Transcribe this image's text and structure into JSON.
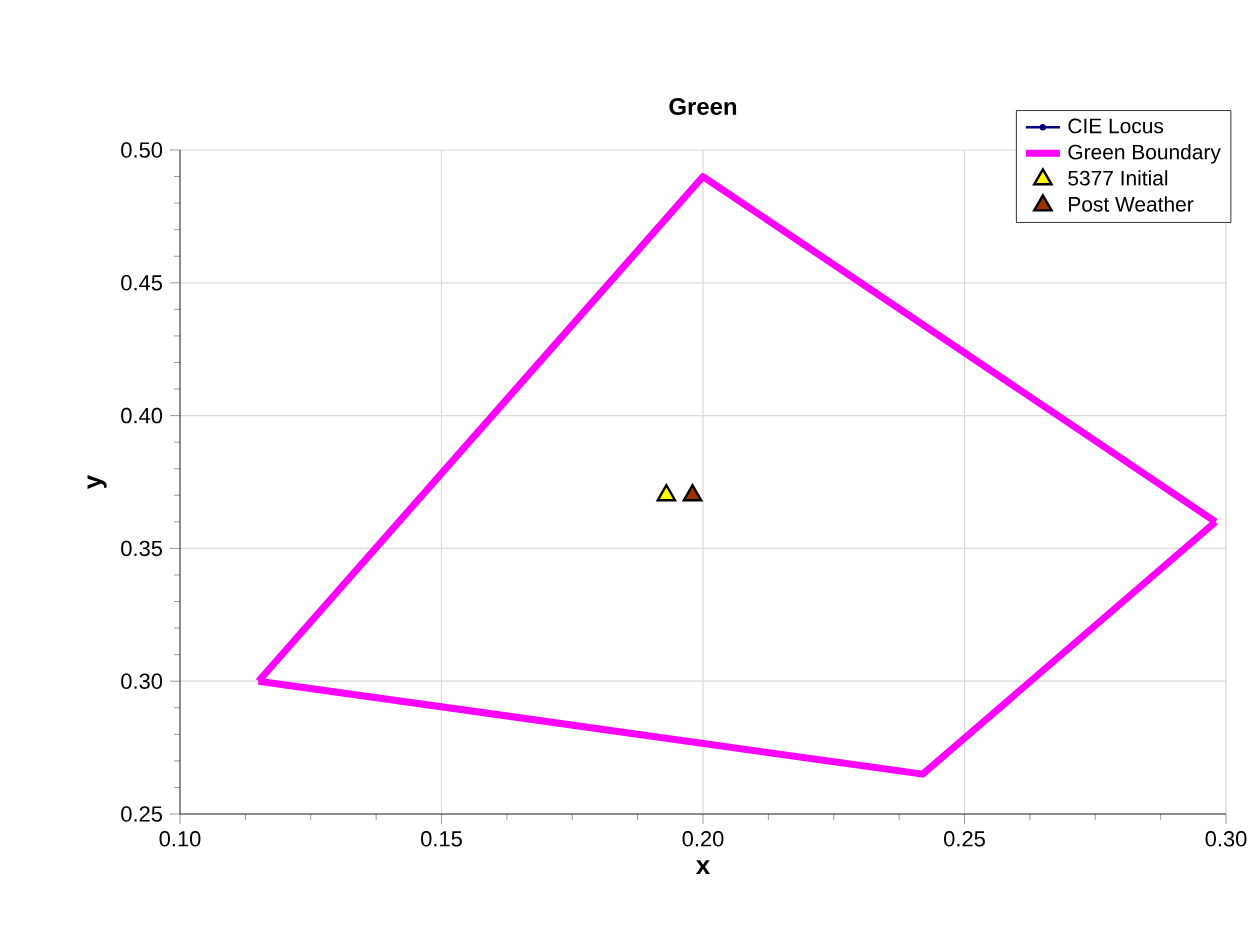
{
  "chart_data": {
    "type": "line",
    "title": "Green",
    "xlabel": "x",
    "ylabel": "y",
    "xlim": [
      0.1,
      0.3
    ],
    "ylim": [
      0.25,
      0.5
    ],
    "xticks": [
      {
        "value": 0.1,
        "label": "0.10"
      },
      0.15,
      {
        "value": 0.2,
        "label": "0.20"
      },
      0.25,
      {
        "value": 0.3,
        "label": "0.30"
      }
    ],
    "yticks": [
      0.25,
      {
        "value": 0.3,
        "label": "0.30"
      },
      0.35,
      {
        "value": 0.4,
        "label": "0.40"
      },
      0.45,
      {
        "value": 0.5,
        "label": "0.50"
      }
    ],
    "grid": true,
    "legend": "top right",
    "series": [
      {
        "name": "CIE Locus",
        "type": "line",
        "color": "#000080",
        "marker": "circle"
      },
      {
        "name": "Green Boundary",
        "color": "#ff00ff",
        "marker": "none",
        "x": [
          0.115,
          0.2,
          0.298
        ],
        "values": [
          0.3,
          0.49,
          0.36
        ]
      },
      {
        "color": "#ff00ff",
        "marker": "none",
        "x": [
          0.115,
          0.242,
          0.298
        ],
        "values": [
          0.3,
          0.265,
          0.36
        ]
      },
      {
        "name": "5377 Initial",
        "type": "scatter",
        "color": "#ffff00",
        "marker": "triangle",
        "x": [
          0.193
        ],
        "values": [
          0.37
        ]
      },
      {
        "name": "Post Weather",
        "type": "scatter",
        "color": "#993300",
        "marker": "triangle",
        "x": [
          0.198
        ],
        "values": [
          0.37
        ]
      }
    ]
  }
}
